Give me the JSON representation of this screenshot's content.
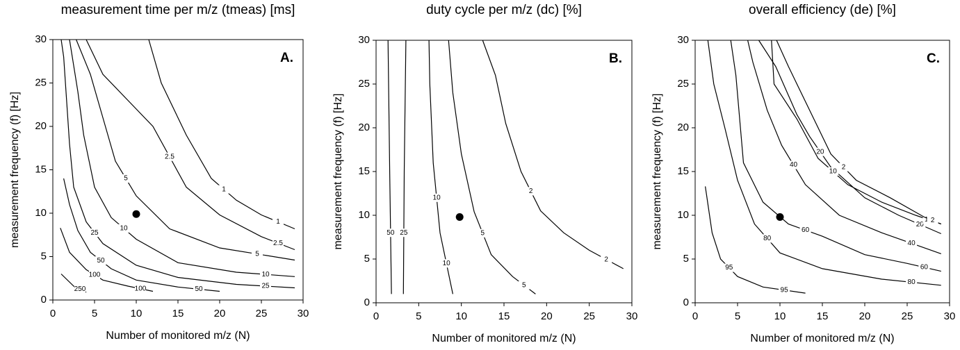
{
  "chart_data": [
    {
      "type": "contour",
      "title": "measurement time per m/z (tmeas) [ms]",
      "panel_label": "A.",
      "xlabel": "Number of monitored m/z (N)",
      "ylabel": "measurement frequency (f) [Hz]",
      "xlim": [
        0,
        30
      ],
      "ylim": [
        0,
        30
      ],
      "xticks": [
        0,
        5,
        10,
        15,
        20,
        25,
        30
      ],
      "yticks": [
        0,
        5,
        10,
        15,
        20,
        25,
        30
      ],
      "series": [
        {
          "name": "1",
          "color": "#000000",
          "x": [
            11.5,
            13,
            16,
            19,
            22,
            25,
            29
          ],
          "values": [
            30,
            25,
            19,
            14,
            11.5,
            9.8,
            8.2
          ]
        },
        {
          "name": "2.5",
          "color": "#000000",
          "x": [
            4,
            6,
            9,
            12,
            16,
            20,
            25,
            29
          ],
          "values": [
            30,
            26,
            23,
            20,
            13,
            9.8,
            7.3,
            5.8
          ]
        },
        {
          "name": "5",
          "color": "#000000",
          "x": [
            2.8,
            4.5,
            6,
            7.5,
            10,
            14,
            20,
            29
          ],
          "values": [
            30,
            26,
            21,
            16,
            12,
            8.2,
            6,
            4.6
          ]
        },
        {
          "name": "10",
          "color": "#000000",
          "x": [
            2,
            3,
            3.7,
            5,
            7,
            10,
            15,
            22,
            29
          ],
          "values": [
            30,
            24,
            19,
            13,
            9.5,
            7,
            4.3,
            3.2,
            2.7
          ]
        },
        {
          "name": "25",
          "color": "#000000",
          "x": [
            1,
            1.3,
            2,
            2.5,
            4,
            6,
            10,
            15,
            22,
            29
          ],
          "values": [
            30,
            28,
            18,
            13,
            9,
            6.5,
            4,
            2.6,
            1.8,
            1.4
          ]
        },
        {
          "name": "50",
          "color": "#000000",
          "x": [
            1.3,
            2,
            3,
            4.5,
            7,
            10,
            15,
            20
          ],
          "values": [
            14,
            11,
            8,
            5.5,
            3.6,
            2.3,
            1.5,
            1
          ]
        },
        {
          "name": "100",
          "color": "#000000",
          "x": [
            0.9,
            2,
            4,
            6,
            9,
            12
          ],
          "values": [
            8.3,
            5.5,
            3.5,
            2.3,
            1.6,
            1
          ]
        },
        {
          "name": "250",
          "color": "#000000",
          "x": [
            1,
            2.5,
            4
          ],
          "values": [
            3,
            1.6,
            0.9
          ]
        }
      ],
      "point": {
        "x": 10,
        "y": 9.9,
        "color": "#000000"
      }
    },
    {
      "type": "contour",
      "title": "duty cycle per m/z (dc) [%]",
      "panel_label": "B.",
      "xlabel": "Number of monitored m/z (N)",
      "ylabel": "measurement frequency (f) [Hz]",
      "xlim": [
        0,
        30
      ],
      "ylim": [
        0,
        30
      ],
      "xticks": [
        0,
        5,
        10,
        15,
        20,
        25,
        30
      ],
      "yticks": [
        0,
        5,
        10,
        15,
        20,
        25,
        30
      ],
      "series": [
        {
          "name": "50",
          "color": "#000000",
          "x": [
            1.4,
            1.6,
            1.8
          ],
          "values": [
            30,
            15,
            1
          ]
        },
        {
          "name": "25",
          "color": "#000000",
          "x": [
            3.5,
            3.3,
            3.2
          ],
          "values": [
            30,
            15,
            1
          ]
        },
        {
          "name": "10",
          "color": "#000000",
          "x": [
            6.2,
            6.3,
            6.7,
            7.5,
            9
          ],
          "values": [
            30,
            25,
            16,
            8,
            1
          ]
        },
        {
          "name": "5",
          "color": "#000000",
          "x": [
            8.5,
            9,
            10,
            11.5,
            13.5,
            16,
            18.7
          ],
          "values": [
            30,
            24,
            17,
            10.4,
            5.5,
            3,
            1
          ]
        },
        {
          "name": "2",
          "color": "#000000",
          "x": [
            12.5,
            14,
            15.2,
            17,
            19.3,
            22,
            25,
            29
          ],
          "values": [
            30,
            26,
            20.5,
            15,
            10.5,
            8,
            6,
            3.9
          ]
        }
      ],
      "point": {
        "x": 9.8,
        "y": 9.8,
        "color": "#000000"
      }
    },
    {
      "type": "contour",
      "title": "overall efficiency (de) [%]",
      "panel_label": "C.",
      "xlabel": "Number of monitored m/z (N)",
      "ylabel": "measurement frequency (f) [Hz]",
      "xlim": [
        0,
        30
      ],
      "ylim": [
        0,
        30
      ],
      "xticks": [
        0,
        5,
        10,
        15,
        20,
        25,
        30
      ],
      "yticks": [
        0,
        5,
        10,
        15,
        20,
        25,
        30
      ],
      "series": [
        {
          "name": "95",
          "color": "#000000",
          "x": [
            1.2,
            2,
            3,
            5,
            8,
            13
          ],
          "values": [
            13.3,
            8,
            5,
            3,
            1.8,
            1.1
          ]
        },
        {
          "name": "80",
          "color": "#000000",
          "x": [
            1.5,
            2.2,
            3.5,
            5,
            7,
            10,
            15,
            22,
            29
          ],
          "values": [
            30,
            25,
            20,
            14,
            9,
            5.7,
            3.9,
            2.7,
            2
          ]
        },
        {
          "name": "60",
          "color": "#000000",
          "x": [
            4.2,
            4.8,
            5.7,
            8,
            11,
            15,
            20,
            25,
            29
          ],
          "values": [
            30,
            26,
            16,
            11.5,
            9,
            7.6,
            5.5,
            4.5,
            3.6
          ]
        },
        {
          "name": "40",
          "color": "#000000",
          "x": [
            6.2,
            6.8,
            8.5,
            10.2,
            13,
            17,
            22,
            29
          ],
          "values": [
            30,
            27.5,
            22,
            18,
            13.5,
            10,
            8,
            5.6
          ]
        },
        {
          "name": "20",
          "color": "#000000",
          "x": [
            7.5,
            9.5,
            12,
            13.5,
            16,
            20,
            24,
            29
          ],
          "values": [
            30,
            27,
            21.5,
            19,
            15.5,
            12,
            10,
            7.9
          ]
        },
        {
          "name": "10",
          "color": "#000000",
          "x": [
            9,
            9.3,
            12,
            14.5,
            18,
            22,
            26,
            29
          ],
          "values": [
            30,
            25,
            21,
            16.5,
            13.5,
            11.5,
            10,
            9
          ]
        },
        {
          "name": "2",
          "color": "#000000",
          "x": [
            9.6,
            11,
            14,
            16,
            19,
            23,
            27,
            29
          ],
          "values": [
            30,
            27,
            21,
            17,
            14,
            12,
            9.8,
            9
          ]
        }
      ],
      "point": {
        "x": 10,
        "y": 9.8,
        "color": "#000000"
      }
    }
  ]
}
